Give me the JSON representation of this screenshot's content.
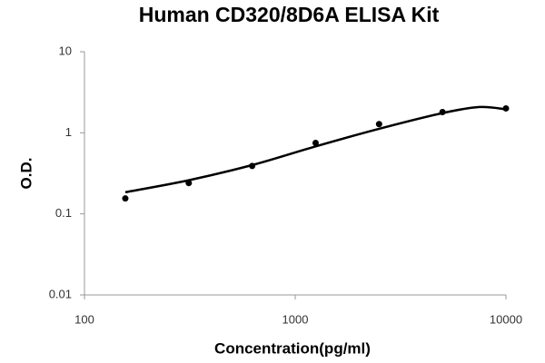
{
  "chart_data": {
    "type": "scatter",
    "title": "Human CD320/8D6A ELISA Kit",
    "xlabel": "Concentration(pg/ml)",
    "ylabel": "O.D.",
    "xscale": "log",
    "yscale": "log",
    "xlim": [
      100,
      10000
    ],
    "ylim": [
      0.01,
      10
    ],
    "xticks": [
      100,
      1000,
      10000
    ],
    "yticks": [
      0.01,
      0.1,
      1,
      10
    ],
    "series": [
      {
        "color": "#000000",
        "mode": "markers",
        "x": [
          156.25,
          312.5,
          625,
          1250,
          2500,
          5000,
          10000
        ],
        "values": [
          0.155,
          0.24,
          0.39,
          0.75,
          1.28,
          1.8,
          2.0
        ]
      },
      {
        "color": "#000000",
        "mode": "line",
        "x": [
          156.25,
          312.5,
          625,
          1250,
          2500,
          5000,
          7500,
          10000
        ],
        "values": [
          0.185,
          0.26,
          0.4,
          0.68,
          1.12,
          1.75,
          2.08,
          1.95
        ]
      }
    ]
  }
}
